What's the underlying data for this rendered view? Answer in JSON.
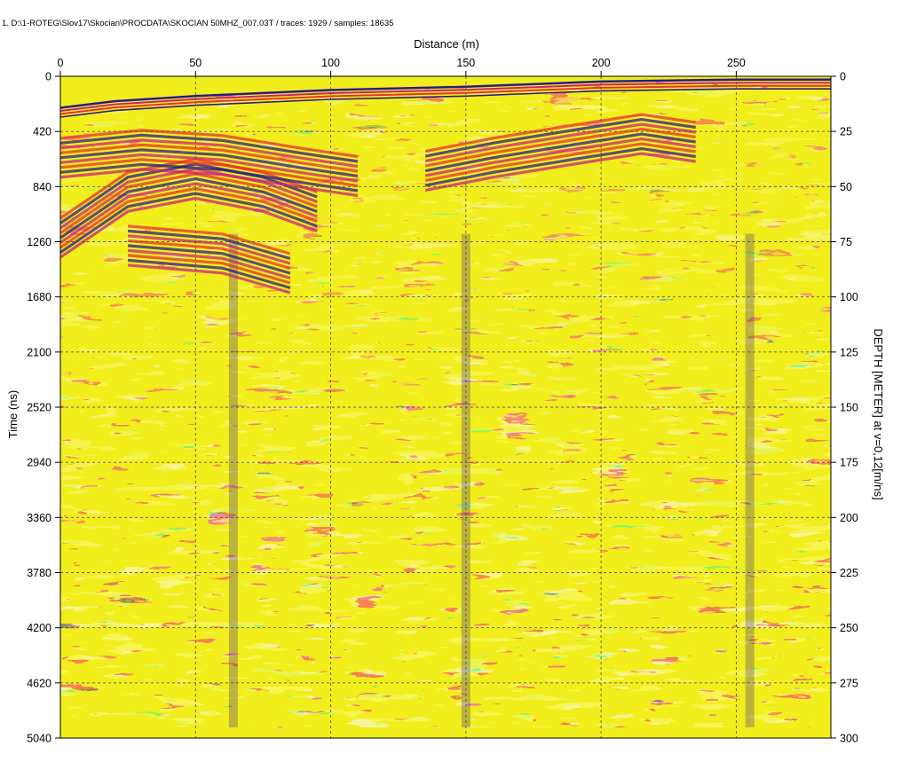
{
  "header": {
    "file_info": "1. D:\\1-ROTEG\\Slov17\\Skocian\\PROCDATA\\SKOCIAN 50MHZ_007.03T / traces: 1929 / samples: 18635"
  },
  "colors": {
    "background_fill": "#f2ee1c",
    "positive_strong": "#2a1a8a",
    "positive_mid": "#c8207c",
    "negative_mid": "#e8302a",
    "negative_weak": "#2f9a3c",
    "grid": "#555555"
  },
  "chart_data": {
    "type": "heatmap",
    "title": "",
    "xlabel": "Distance (m)",
    "ylabel": "Time (ns)",
    "y2label": "DEPTH [METER] at v=0,12[m/ns]",
    "xlim": [
      0,
      285
    ],
    "ylim": [
      5040,
      0
    ],
    "y2lim": [
      300,
      0
    ],
    "x_ticks": [
      0,
      50,
      100,
      150,
      200,
      250
    ],
    "x_tick_labels": [
      "0",
      "50",
      "100",
      "150",
      "200",
      "250"
    ],
    "y_ticks": [
      0,
      420,
      840,
      1260,
      1680,
      2100,
      2520,
      2940,
      3360,
      3780,
      4200,
      4620,
      5040
    ],
    "y_tick_labels": [
      "0",
      "420",
      "840",
      "1260",
      "1680",
      "2100",
      "2520",
      "2940",
      "3360",
      "3780",
      "4200",
      "4620",
      "5040"
    ],
    "y2_ticks": [
      0,
      25,
      50,
      75,
      100,
      125,
      150,
      175,
      200,
      225,
      250,
      275,
      300
    ],
    "y2_tick_labels": [
      "0",
      "25",
      "50",
      "75",
      "100",
      "125",
      "150",
      "175",
      "200",
      "225",
      "250",
      "275",
      "300"
    ],
    "grid": true,
    "surface_reflector": {
      "distance_m": [
        0,
        20,
        50,
        100,
        150,
        200,
        250,
        285
      ],
      "time_ns": [
        240,
        190,
        150,
        105,
        80,
        40,
        25,
        25
      ]
    },
    "reflector_bands": [
      {
        "distance_m": [
          0,
          25,
          50,
          75,
          95
        ],
        "time_ns": [
          1230,
          880,
          780,
          880,
          1030
        ]
      },
      {
        "distance_m": [
          0,
          30,
          60,
          90,
          110
        ],
        "time_ns": [
          620,
          560,
          600,
          700,
          760
        ]
      },
      {
        "distance_m": [
          135,
          160,
          190,
          215,
          235
        ],
        "time_ns": [
          720,
          620,
          520,
          440,
          500
        ]
      },
      {
        "distance_m": [
          25,
          60,
          85
        ],
        "time_ns": [
          1290,
          1350,
          1500
        ]
      }
    ],
    "vertical_features_m": [
      64,
      150,
      255
    ]
  }
}
